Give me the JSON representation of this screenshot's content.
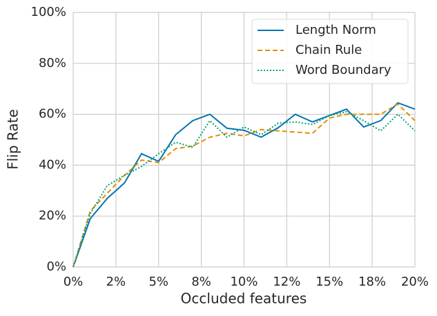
{
  "chart_data": {
    "type": "line",
    "x_label": "Occluded features",
    "y_label": "Flip Rate",
    "x": [
      0,
      1,
      2,
      3,
      4,
      5,
      6,
      7,
      8,
      9,
      10,
      11,
      12,
      13,
      14,
      15,
      16,
      17,
      18,
      19,
      20
    ],
    "series": [
      {
        "name": "Length Norm",
        "color": "#0173b2",
        "linestyle": "solid",
        "values": [
          0,
          19,
          27,
          33,
          44.5,
          41.5,
          52,
          57.5,
          60,
          54.5,
          53.7,
          51,
          54.7,
          60,
          57,
          59.5,
          62,
          55,
          57.5,
          64.5,
          62
        ]
      },
      {
        "name": "Chain Rule",
        "color": "#de8f05",
        "linestyle": "dashed",
        "values": [
          0,
          22,
          29,
          36,
          42,
          41,
          46.5,
          47.5,
          51,
          52.5,
          51.5,
          54,
          53.5,
          53,
          52.5,
          58.5,
          60,
          60,
          60,
          64,
          57.5
        ]
      },
      {
        "name": "Word Boundary",
        "color": "#029e73",
        "linestyle": "dotted",
        "values": [
          0,
          21,
          32,
          36,
          39.5,
          44.5,
          49,
          47,
          57.5,
          51,
          55,
          52,
          56.5,
          57,
          56,
          59.5,
          61,
          57.5,
          53.5,
          60,
          53.5
        ]
      }
    ],
    "xlim": [
      0,
      20
    ],
    "xticks": [
      {
        "value": 0,
        "label": "0%"
      },
      {
        "value": 2.5,
        "label": "2%"
      },
      {
        "value": 5,
        "label": "5%"
      },
      {
        "value": 7.5,
        "label": "8%"
      },
      {
        "value": 10,
        "label": "10%"
      },
      {
        "value": 12.5,
        "label": "12%"
      },
      {
        "value": 15,
        "label": "15%"
      },
      {
        "value": 17.5,
        "label": "18%"
      },
      {
        "value": 20,
        "label": "20%"
      }
    ],
    "ylim": [
      0,
      100
    ],
    "yticks": [
      {
        "value": 0,
        "label": "0%"
      },
      {
        "value": 20,
        "label": "20%"
      },
      {
        "value": 40,
        "label": "40%"
      },
      {
        "value": 60,
        "label": "60%"
      },
      {
        "value": 80,
        "label": "80%"
      },
      {
        "value": 100,
        "label": "100%"
      }
    ],
    "grid": true,
    "legend_position": "upper-right"
  }
}
